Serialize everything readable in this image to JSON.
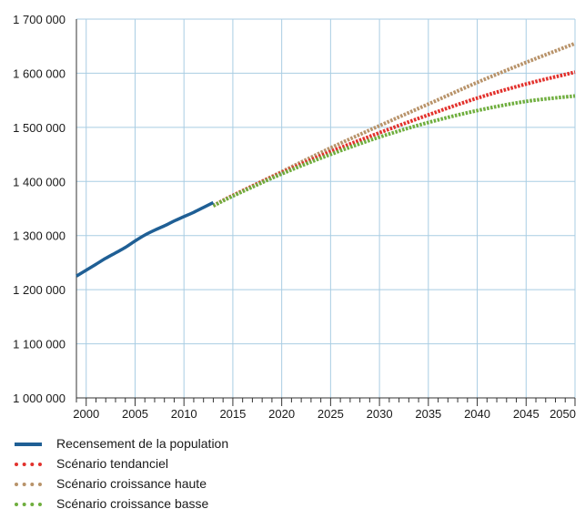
{
  "chart_data": {
    "type": "line",
    "title": "",
    "xlabel": "",
    "ylabel": "",
    "xlim": [
      1999,
      2050
    ],
    "ylim": [
      1000000,
      1700000
    ],
    "x_ticks": [
      "2000",
      "2005",
      "2010",
      "2015",
      "2020",
      "2025",
      "2030",
      "2035",
      "2040",
      "2045",
      "2050"
    ],
    "y_ticks": [
      "1 000 000",
      "1 100 000",
      "1 200 000",
      "1 300 000",
      "1 400 000",
      "1 500 000",
      "1 600 000",
      "1 700 000"
    ],
    "grid": true,
    "legend_position": "bottom",
    "series": [
      {
        "name": "Recensement de la population",
        "style": "solid",
        "color": "#1f5f95",
        "x": [
          1999,
          2000,
          2001,
          2002,
          2003,
          2004,
          2005,
          2006,
          2007,
          2008,
          2009,
          2010,
          2011,
          2012,
          2013
        ],
        "y": [
          1225000,
          1236000,
          1247000,
          1258000,
          1268000,
          1278000,
          1290000,
          1301000,
          1310000,
          1318000,
          1327000,
          1335000,
          1343000,
          1352000,
          1361000
        ]
      },
      {
        "name": "Scénario tendanciel",
        "style": "dotted",
        "color": "#e2312c",
        "x": [
          2013,
          2015,
          2020,
          2025,
          2030,
          2035,
          2040,
          2045,
          2050
        ],
        "y": [
          1355000,
          1374000,
          1416000,
          1455000,
          1490000,
          1523000,
          1554000,
          1580000,
          1602000
        ]
      },
      {
        "name": "Scénario croissance haute",
        "style": "dotted",
        "color": "#b8936a",
        "x": [
          2013,
          2015,
          2020,
          2025,
          2030,
          2035,
          2040,
          2045,
          2050
        ],
        "y": [
          1355000,
          1374000,
          1418000,
          1462000,
          1503000,
          1543000,
          1583000,
          1620000,
          1655000
        ]
      },
      {
        "name": "Scénario croissance basse",
        "style": "dotted",
        "color": "#6fae3e",
        "x": [
          2013,
          2015,
          2020,
          2025,
          2030,
          2035,
          2040,
          2045,
          2050
        ],
        "y": [
          1355000,
          1373000,
          1414000,
          1450000,
          1482000,
          1509000,
          1531000,
          1548000,
          1558000
        ]
      }
    ]
  }
}
